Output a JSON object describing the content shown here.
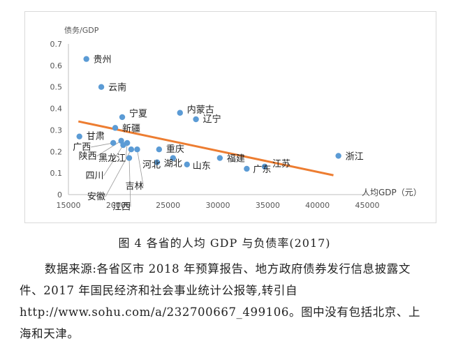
{
  "figure": {
    "caption": "图 4  各省的人均 GDP 与负债率(2017)",
    "source_note": "数据来源:各省区市 2018 年预算报告、地方政府债券发行信息披露文件、2017 年国民经济和社会事业统计公报等,转引自 http://www.sohu.com/a/232700667_499106。图中没有包括北京、上海和天津。"
  },
  "chart_data": {
    "type": "scatter",
    "xlabel": "人均GDP（元）",
    "ylabel": "债务/GDP",
    "xlim": [
      15000,
      45000
    ],
    "ylim": [
      0,
      0.7
    ],
    "xticks": [
      15000,
      20000,
      25000,
      30000,
      35000,
      40000,
      45000
    ],
    "yticks": [
      0,
      0.1,
      0.2,
      0.3,
      0.4,
      0.5,
      0.6,
      0.7
    ],
    "yticklabels": [
      "0",
      "0.1",
      "0.2",
      "0.3",
      "0.4",
      "0.5",
      "0.6",
      "0.7"
    ],
    "grid": false,
    "points": [
      {
        "label": "贵州",
        "x": 16800,
        "y": 0.63
      },
      {
        "label": "云南",
        "x": 18300,
        "y": 0.5
      },
      {
        "label": "宁夏",
        "x": 20400,
        "y": 0.36
      },
      {
        "label": "新疆",
        "x": 19700,
        "y": 0.31
      },
      {
        "label": "内蒙古",
        "x": 26200,
        "y": 0.38
      },
      {
        "label": "辽宁",
        "x": 27800,
        "y": 0.35
      },
      {
        "label": "甘肃",
        "x": 16100,
        "y": 0.27
      },
      {
        "label": "广西",
        "x": 19500,
        "y": 0.24
      },
      {
        "label": "陕西",
        "x": 20300,
        "y": 0.25
      },
      {
        "label": "黑龙江",
        "x": 20900,
        "y": 0.24
      },
      {
        "label": "四川",
        "x": 20500,
        "y": 0.23
      },
      {
        "label": "安徽",
        "x": 21300,
        "y": 0.21
      },
      {
        "label": "吉林",
        "x": 21900,
        "y": 0.21
      },
      {
        "label": "江西",
        "x": 21100,
        "y": 0.17
      },
      {
        "label": "河北",
        "x": 23900,
        "y": 0.15
      },
      {
        "label": "重庆",
        "x": 24100,
        "y": 0.21
      },
      {
        "label": "湖北",
        "x": 25500,
        "y": 0.17
      },
      {
        "label": "山东",
        "x": 26900,
        "y": 0.14
      },
      {
        "label": "福建",
        "x": 30200,
        "y": 0.17
      },
      {
        "label": "广东",
        "x": 32900,
        "y": 0.12
      },
      {
        "label": "江苏",
        "x": 34700,
        "y": 0.13
      },
      {
        "label": "浙江",
        "x": 42100,
        "y": 0.18
      }
    ],
    "trendline": {
      "x": [
        16000,
        41600
      ],
      "y": [
        0.34,
        0.09
      ],
      "color": "#ed7d31"
    },
    "marker_color": "#5b9bd5"
  }
}
